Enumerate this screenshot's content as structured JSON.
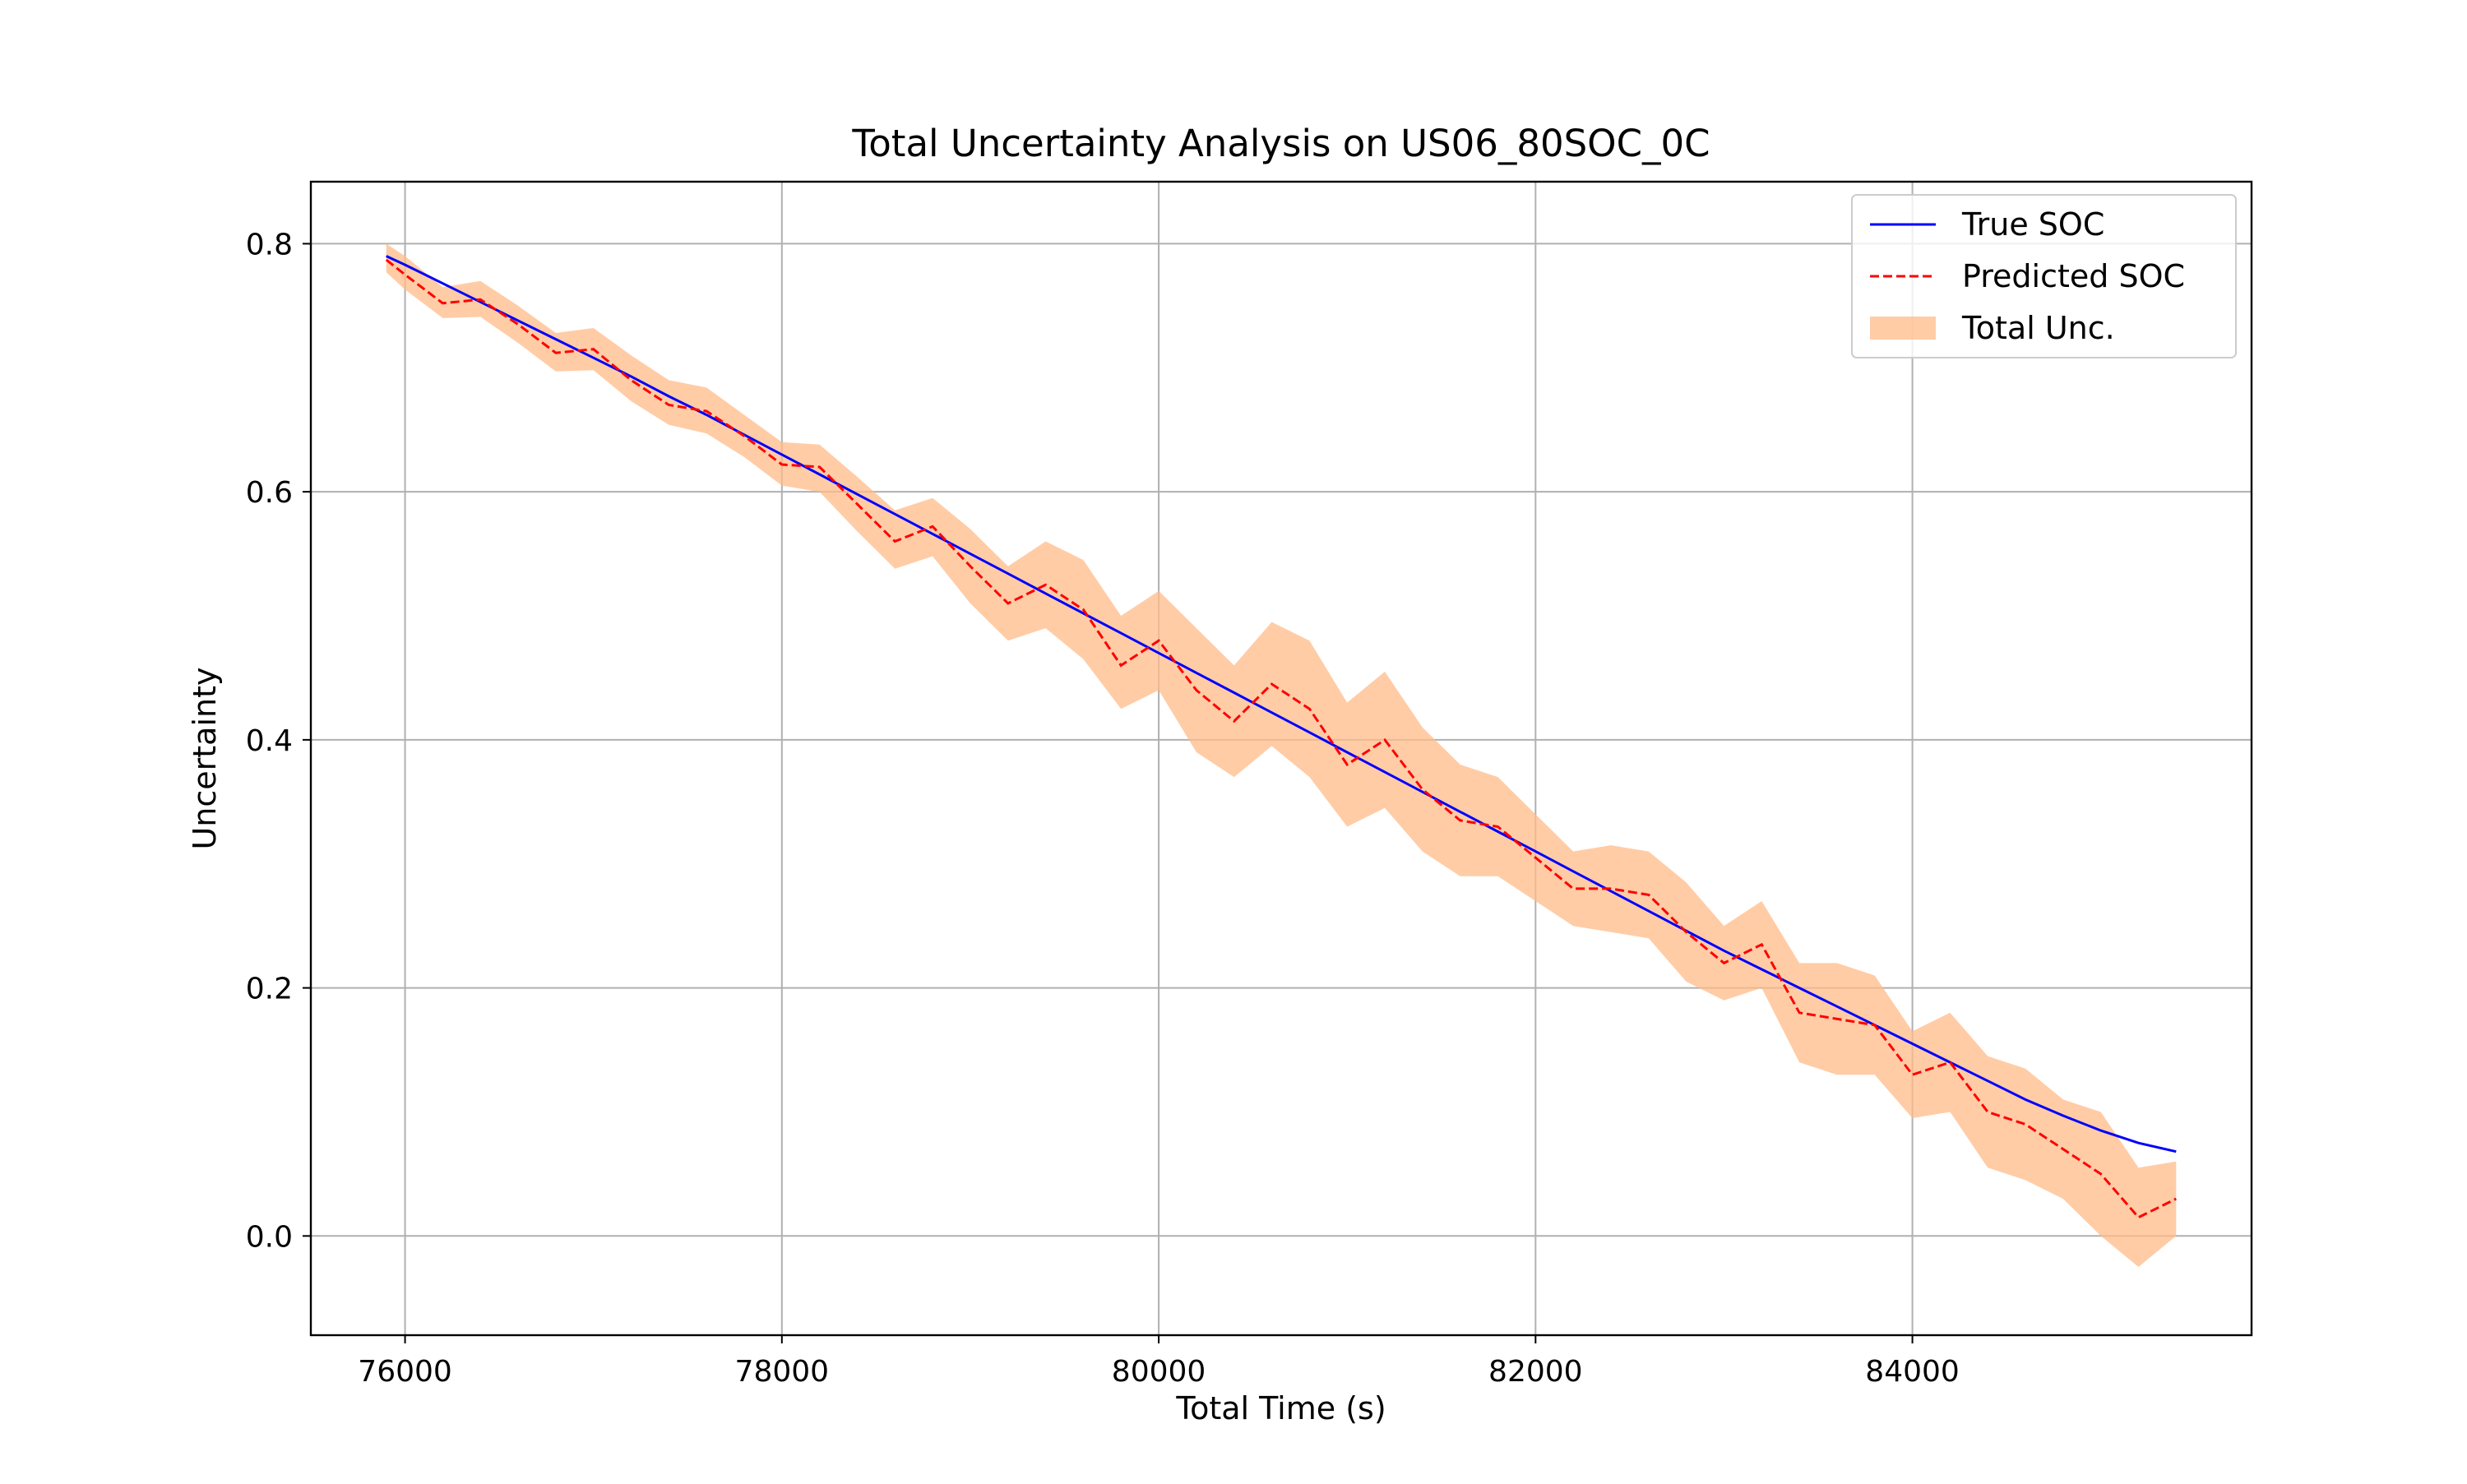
{
  "chart_data": {
    "type": "line",
    "title": "Total Uncertainty Analysis on US06_80SOC_0C",
    "xlabel": "Total Time (s)",
    "ylabel": "Uncertainty",
    "xlim": [
      75500,
      85800
    ],
    "ylim": [
      -0.08,
      0.85
    ],
    "xticks": [
      76000,
      78000,
      80000,
      82000,
      84000
    ],
    "yticks": [
      0.0,
      0.2,
      0.4,
      0.6,
      0.8
    ],
    "xtick_labels": [
      "76000",
      "78000",
      "80000",
      "82000",
      "84000"
    ],
    "ytick_labels": [
      "0.0",
      "0.2",
      "0.4",
      "0.6",
      "0.8"
    ],
    "grid": true,
    "legend_position": "top-right",
    "legend": [
      "True SOC",
      "Predicted SOC",
      "Total Unc."
    ],
    "colors": {
      "true_soc": "#0000ff",
      "predicted_soc": "#ff0000",
      "uncertainty_band": "#ffbb88"
    },
    "x": [
      75900,
      76000,
      76200,
      76400,
      76600,
      76800,
      77000,
      77200,
      77400,
      77600,
      77800,
      78000,
      78200,
      78400,
      78600,
      78800,
      79000,
      79200,
      79400,
      79600,
      79800,
      80000,
      80200,
      80400,
      80600,
      80800,
      81000,
      81200,
      81400,
      81600,
      81800,
      82000,
      82200,
      82400,
      82600,
      82800,
      83000,
      83200,
      83400,
      83600,
      83800,
      84000,
      84200,
      84400,
      84600,
      84800,
      85000,
      85200,
      85400
    ],
    "series": [
      {
        "name": "True SOC",
        "values": [
          0.79,
          0.783,
          0.768,
          0.753,
          0.738,
          0.723,
          0.708,
          0.693,
          0.677,
          0.662,
          0.646,
          0.63,
          0.614,
          0.598,
          0.582,
          0.566,
          0.55,
          0.534,
          0.518,
          0.502,
          0.486,
          0.47,
          0.454,
          0.438,
          0.422,
          0.406,
          0.39,
          0.374,
          0.358,
          0.342,
          0.326,
          0.31,
          0.294,
          0.278,
          0.262,
          0.246,
          0.23,
          0.215,
          0.2,
          0.185,
          0.17,
          0.155,
          0.14,
          0.125,
          0.11,
          0.097,
          0.085,
          0.075,
          0.068
        ]
      },
      {
        "name": "Predicted SOC",
        "values": [
          0.787,
          0.775,
          0.752,
          0.755,
          0.735,
          0.712,
          0.715,
          0.69,
          0.67,
          0.665,
          0.645,
          0.622,
          0.62,
          0.59,
          0.56,
          0.572,
          0.54,
          0.51,
          0.525,
          0.505,
          0.46,
          0.48,
          0.44,
          0.415,
          0.445,
          0.425,
          0.38,
          0.4,
          0.36,
          0.335,
          0.33,
          0.305,
          0.28,
          0.28,
          0.275,
          0.245,
          0.22,
          0.235,
          0.18,
          0.175,
          0.17,
          0.13,
          0.14,
          0.1,
          0.09,
          0.07,
          0.05,
          0.015,
          0.03
        ]
      }
    ],
    "uncertainty": {
      "name": "Total Unc.",
      "lower": [
        0.777,
        0.763,
        0.74,
        0.741,
        0.72,
        0.697,
        0.698,
        0.673,
        0.654,
        0.647,
        0.628,
        0.605,
        0.6,
        0.568,
        0.538,
        0.548,
        0.51,
        0.48,
        0.49,
        0.465,
        0.425,
        0.44,
        0.39,
        0.37,
        0.395,
        0.37,
        0.33,
        0.345,
        0.31,
        0.29,
        0.29,
        0.27,
        0.25,
        0.245,
        0.24,
        0.205,
        0.19,
        0.2,
        0.14,
        0.13,
        0.13,
        0.095,
        0.1,
        0.055,
        0.045,
        0.03,
        0.0,
        -0.025,
        0.0
      ],
      "upper": [
        0.8,
        0.79,
        0.765,
        0.77,
        0.75,
        0.728,
        0.732,
        0.71,
        0.69,
        0.684,
        0.662,
        0.64,
        0.638,
        0.612,
        0.585,
        0.595,
        0.57,
        0.54,
        0.56,
        0.545,
        0.5,
        0.52,
        0.49,
        0.46,
        0.495,
        0.48,
        0.43,
        0.455,
        0.41,
        0.38,
        0.37,
        0.34,
        0.31,
        0.315,
        0.31,
        0.285,
        0.25,
        0.27,
        0.22,
        0.22,
        0.21,
        0.165,
        0.18,
        0.145,
        0.135,
        0.11,
        0.1,
        0.055,
        0.06
      ]
    }
  }
}
